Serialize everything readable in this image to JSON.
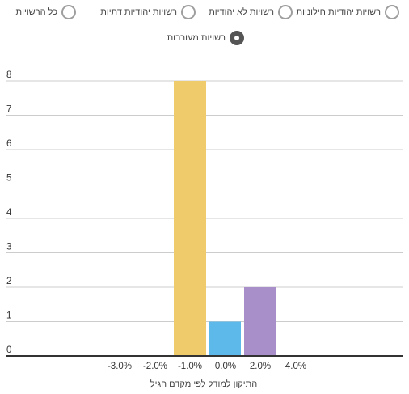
{
  "filters": {
    "options": [
      {
        "label": "רשויות יהודיות חילוניות",
        "checked": false
      },
      {
        "label": "רשויות לא יהודיות",
        "checked": false
      },
      {
        "label": "רשויות יהודיות דתיות",
        "checked": false
      },
      {
        "label": "כל הרשויות",
        "checked": false
      },
      {
        "label": "רשויות מעורבות",
        "checked": true
      }
    ]
  },
  "chart_data": {
    "type": "bar",
    "xlabel": "התיקון למודל לפי מקדם הגיל",
    "ylabel": "",
    "ylim": [
      0,
      8
    ],
    "yticks": [
      "0",
      "1",
      "2",
      "3",
      "4",
      "5",
      "6",
      "7",
      "8"
    ],
    "x_tick_labels": [
      "-3.0%",
      "-2.0%",
      "-1.0%",
      "0.0%",
      "2.0%",
      "4.0%"
    ],
    "grid": true,
    "bars": [
      {
        "label": "-1.0%",
        "value": 8,
        "color": "#efcb6c"
      },
      {
        "label": "0.0%",
        "value": 1,
        "color": "#5db9e9"
      },
      {
        "label": "2.0%",
        "value": 2,
        "color": "#a88fc9"
      }
    ]
  }
}
